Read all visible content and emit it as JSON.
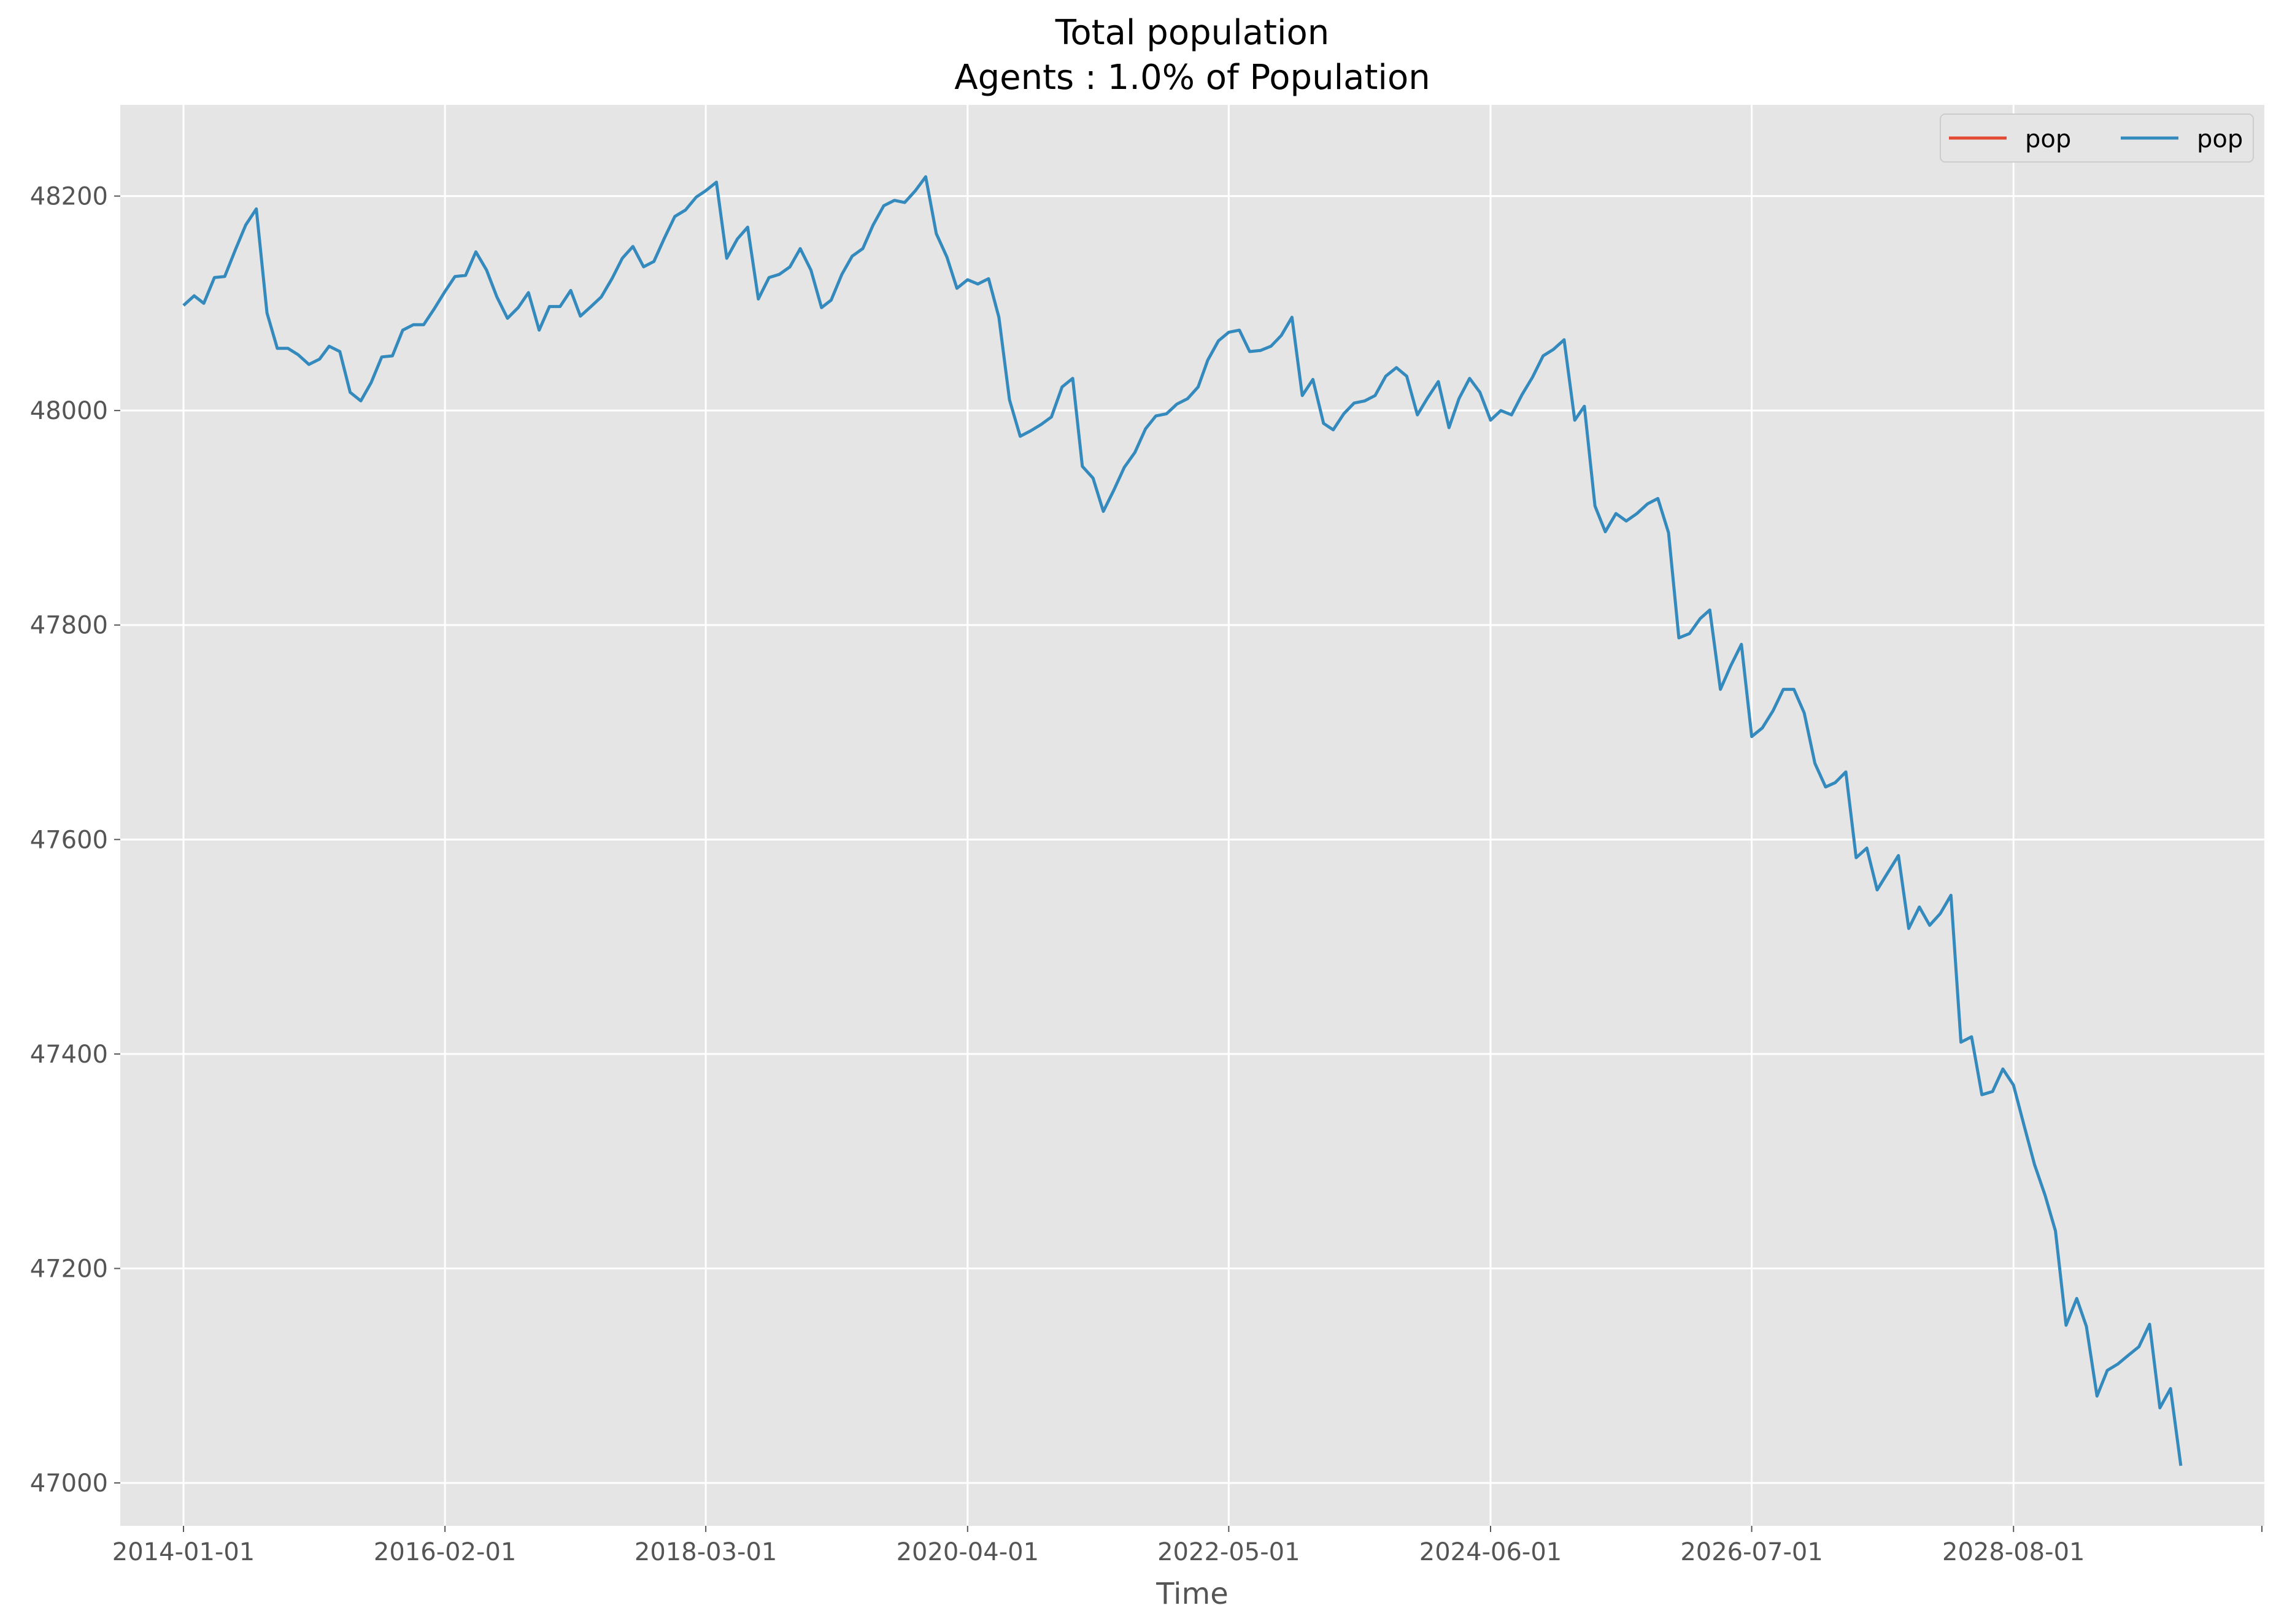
{
  "chart_data": {
    "type": "line",
    "title": "Total population",
    "subtitle": "Agents : 1.0% of Population",
    "xlabel": "Time",
    "ylabel": "",
    "x_ticks": [
      "2014-01-01",
      "2016-02-01",
      "2018-03-01",
      "2020-04-01",
      "2022-05-01",
      "2024-06-01",
      "2026-07-01",
      "2028-08-01"
    ],
    "y_ticks": [
      47000,
      47200,
      47400,
      47600,
      47800,
      48000,
      48200
    ],
    "ylim": [
      46960,
      48285
    ],
    "xlim": [
      "2013-07-01",
      "2030-08-01"
    ],
    "grid": true,
    "legend": {
      "placement": "top-right",
      "columns": 2
    },
    "series": [
      {
        "name": "pop",
        "color": "#E24A33",
        "x": [],
        "values": []
      },
      {
        "name": "pop",
        "color": "#348ABD",
        "x": [
          "2014-01-01",
          "2014-02-01",
          "2014-03-01",
          "2014-04-01",
          "2014-05-01",
          "2014-06-01",
          "2014-07-01",
          "2014-08-01",
          "2014-09-01",
          "2014-10-01",
          "2014-11-01",
          "2014-12-01",
          "2015-01-01",
          "2015-02-01",
          "2015-03-01",
          "2015-04-01",
          "2015-05-01",
          "2015-06-01",
          "2015-07-01",
          "2015-08-01",
          "2015-09-01",
          "2015-10-01",
          "2015-11-01",
          "2015-12-01",
          "2016-01-01",
          "2016-02-01",
          "2016-03-01",
          "2016-04-01",
          "2016-05-01",
          "2016-06-01",
          "2016-07-01",
          "2016-08-01",
          "2016-09-01",
          "2016-10-01",
          "2016-11-01",
          "2016-12-01",
          "2017-01-01",
          "2017-02-01",
          "2017-03-01",
          "2017-04-01",
          "2017-05-01",
          "2017-06-01",
          "2017-07-01",
          "2017-08-01",
          "2017-09-01",
          "2017-10-01",
          "2017-11-01",
          "2017-12-01",
          "2018-01-01",
          "2018-02-01",
          "2018-03-01",
          "2018-04-01",
          "2018-05-01",
          "2018-06-01",
          "2018-07-01",
          "2018-08-01",
          "2018-09-01",
          "2018-10-01",
          "2018-11-01",
          "2018-12-01",
          "2019-01-01",
          "2019-02-01",
          "2019-03-01",
          "2019-04-01",
          "2019-05-01",
          "2019-06-01",
          "2019-07-01",
          "2019-08-01",
          "2019-09-01",
          "2019-10-01",
          "2019-11-01",
          "2019-12-01",
          "2020-01-01",
          "2020-02-01",
          "2020-03-01",
          "2020-04-01",
          "2020-05-01",
          "2020-06-01",
          "2020-07-01",
          "2020-08-01",
          "2020-09-01",
          "2020-10-01",
          "2020-11-01",
          "2020-12-01",
          "2021-01-01",
          "2021-02-01",
          "2021-03-01",
          "2021-04-01",
          "2021-05-01",
          "2021-06-01",
          "2021-07-01",
          "2021-08-01",
          "2021-09-01",
          "2021-10-01",
          "2021-11-01",
          "2021-12-01",
          "2022-01-01",
          "2022-02-01",
          "2022-03-01",
          "2022-04-01",
          "2022-05-01",
          "2022-06-01",
          "2022-07-01",
          "2022-08-01",
          "2022-09-01",
          "2022-10-01",
          "2022-11-01",
          "2022-12-01",
          "2023-01-01",
          "2023-02-01",
          "2023-03-01",
          "2023-04-01",
          "2023-05-01",
          "2023-06-01",
          "2023-07-01",
          "2023-08-01",
          "2023-09-01",
          "2023-10-01",
          "2023-11-01",
          "2023-12-01",
          "2024-01-01",
          "2024-02-01",
          "2024-03-01",
          "2024-04-01",
          "2024-05-01",
          "2024-06-01",
          "2024-07-01",
          "2024-08-01",
          "2024-09-01",
          "2024-10-01",
          "2024-11-01",
          "2024-12-01",
          "2025-01-01",
          "2025-02-01",
          "2025-03-01",
          "2025-04-01",
          "2025-05-01",
          "2025-06-01",
          "2025-07-01",
          "2025-08-01",
          "2025-09-01",
          "2025-10-01",
          "2025-11-01",
          "2025-12-01",
          "2026-01-01",
          "2026-02-01",
          "2026-03-01",
          "2026-04-01",
          "2026-05-01",
          "2026-06-01",
          "2026-07-01",
          "2026-08-01",
          "2026-09-01",
          "2026-10-01",
          "2026-11-01",
          "2026-12-01",
          "2027-01-01",
          "2027-02-01",
          "2027-03-01",
          "2027-04-01",
          "2027-05-01",
          "2027-06-01",
          "2027-07-01",
          "2027-08-01",
          "2027-09-01",
          "2027-10-01",
          "2027-11-01",
          "2027-12-01",
          "2028-01-01",
          "2028-02-01",
          "2028-03-01",
          "2028-04-01",
          "2028-05-01",
          "2028-06-01",
          "2028-07-01",
          "2028-08-01",
          "2028-09-01",
          "2028-10-01",
          "2028-11-01",
          "2028-12-01",
          "2029-01-01",
          "2029-02-01",
          "2029-03-01",
          "2029-04-01",
          "2029-05-01",
          "2029-06-01",
          "2029-07-01",
          "2029-08-01",
          "2029-09-01",
          "2029-10-01",
          "2029-11-01",
          "2029-12-01"
        ],
        "values": [
          48098,
          48107,
          48100,
          48124,
          48125,
          48150,
          48173,
          48188,
          48091,
          48058,
          48058,
          48052,
          48043,
          48048,
          48060,
          48055,
          48017,
          48009,
          48026,
          48050,
          48051,
          48075,
          48080,
          48080,
          48095,
          48111,
          48125,
          48126,
          48148,
          48131,
          48106,
          48086,
          48096,
          48110,
          48075,
          48097,
          48097,
          48112,
          48088,
          48097,
          48106,
          48123,
          48142,
          48153,
          48134,
          48139,
          48161,
          48181,
          48187,
          48199,
          48205,
          48213,
          48142,
          48160,
          48171,
          48104,
          48124,
          48127,
          48134,
          48151,
          48131,
          48096,
          48103,
          48127,
          48144,
          48151,
          48173,
          48191,
          48196,
          48194,
          48205,
          48218,
          48165,
          48143,
          48114,
          48122,
          48118,
          48123,
          48087,
          48010,
          47976,
          47981,
          47987,
          47994,
          48022,
          48030,
          47948,
          47937,
          47906,
          47926,
          47947,
          47961,
          47983,
          47995,
          47997,
          48006,
          48011,
          48022,
          48047,
          48065,
          48073,
          48075,
          48055,
          48056,
          48060,
          48070,
          48087,
          48014,
          48029,
          47988,
          47982,
          47997,
          48007,
          48009,
          48014,
          48032,
          48040,
          48032,
          47996,
          48012,
          48027,
          47984,
          48011,
          48030,
          48017,
          47991,
          48000,
          47996,
          48015,
          48031,
          48051,
          48057,
          48066,
          47991,
          48004,
          47911,
          47887,
          47904,
          47897,
          47904,
          47913,
          47918,
          47886,
          47788,
          47792,
          47806,
          47814,
          47740,
          47762,
          47782,
          47696,
          47704,
          47720,
          47740,
          47740,
          47718,
          47671,
          47649,
          47653,
          47663,
          47583,
          47592,
          47553,
          47569,
          47585,
          47517,
          47537,
          47520,
          47531,
          47548,
          47411,
          47416,
          47362,
          47365,
          47386,
          47371,
          47333,
          47297,
          47268,
          47235,
          47147,
          47172,
          47146,
          47081,
          47105,
          47111,
          47119,
          47127,
          47148,
          47070,
          47088,
          47016
        ]
      }
    ]
  }
}
